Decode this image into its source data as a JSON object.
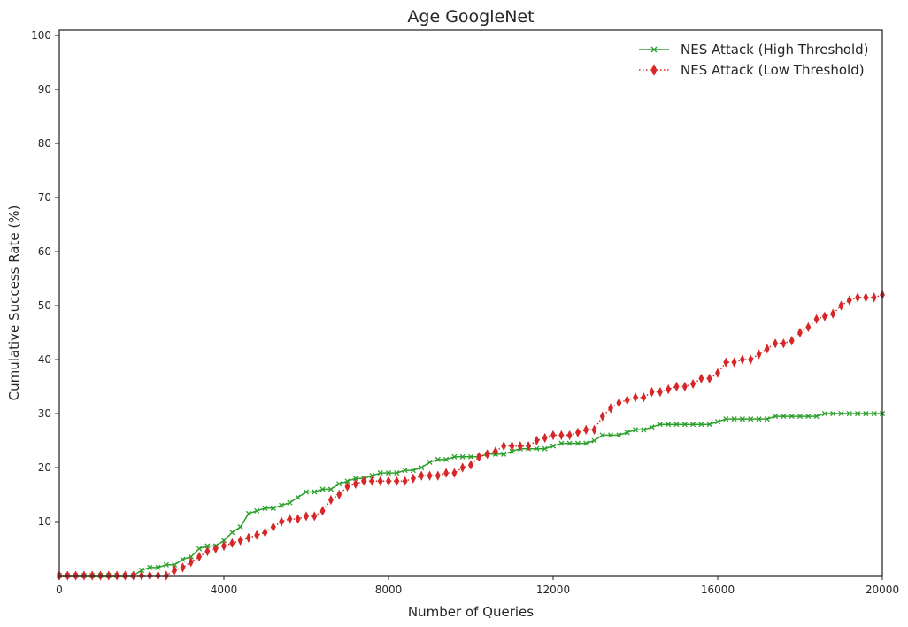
{
  "chart_data": {
    "type": "line",
    "title": "Age GoogleNet",
    "xlabel": "Number of Queries",
    "ylabel": "Cumulative Success Rate (%)",
    "xlim": [
      0,
      20000
    ],
    "ylim": [
      0,
      101
    ],
    "xticks": [
      0,
      4000,
      8000,
      12000,
      16000,
      20000
    ],
    "xtick_labels": [
      "0",
      "4000",
      "8000",
      "12000",
      "16000",
      "20000"
    ],
    "yticks": [
      10,
      20,
      30,
      40,
      50,
      60,
      70,
      80,
      90,
      100
    ],
    "ytick_labels": [
      "10",
      "20",
      "30",
      "40",
      "50",
      "60",
      "70",
      "80",
      "90",
      "100"
    ],
    "grid": false,
    "legend_position": "top-right",
    "series": [
      {
        "name": "NES Attack (High Threshold)",
        "color": "#2ca02c",
        "marker": "x",
        "line_style": "solid",
        "points": [
          [
            0,
            0
          ],
          [
            200,
            0
          ],
          [
            400,
            0
          ],
          [
            600,
            0
          ],
          [
            800,
            0
          ],
          [
            1000,
            0
          ],
          [
            1200,
            0
          ],
          [
            1400,
            0
          ],
          [
            1600,
            0
          ],
          [
            1800,
            0
          ],
          [
            2000,
            1
          ],
          [
            2200,
            1.5
          ],
          [
            2400,
            1.5
          ],
          [
            2600,
            2
          ],
          [
            2800,
            2
          ],
          [
            3000,
            3
          ],
          [
            3200,
            3.5
          ],
          [
            3400,
            5
          ],
          [
            3600,
            5.5
          ],
          [
            3800,
            5.5
          ],
          [
            4000,
            6.5
          ],
          [
            4200,
            8
          ],
          [
            4400,
            9
          ],
          [
            4600,
            11.5
          ],
          [
            4800,
            12
          ],
          [
            5000,
            12.5
          ],
          [
            5200,
            12.5
          ],
          [
            5400,
            13
          ],
          [
            5600,
            13.5
          ],
          [
            5800,
            14.5
          ],
          [
            6000,
            15.5
          ],
          [
            6200,
            15.5
          ],
          [
            6400,
            16
          ],
          [
            6600,
            16
          ],
          [
            6800,
            17
          ],
          [
            7000,
            17.5
          ],
          [
            7200,
            18
          ],
          [
            7400,
            18
          ],
          [
            7600,
            18.5
          ],
          [
            7800,
            19
          ],
          [
            8000,
            19
          ],
          [
            8200,
            19
          ],
          [
            8400,
            19.5
          ],
          [
            8600,
            19.5
          ],
          [
            8800,
            20
          ],
          [
            9000,
            21
          ],
          [
            9200,
            21.5
          ],
          [
            9400,
            21.5
          ],
          [
            9600,
            22
          ],
          [
            9800,
            22
          ],
          [
            10000,
            22
          ],
          [
            10200,
            22
          ],
          [
            10400,
            22.5
          ],
          [
            10600,
            22.5
          ],
          [
            10800,
            22.5
          ],
          [
            11000,
            23
          ],
          [
            11200,
            23.5
          ],
          [
            11400,
            23.5
          ],
          [
            11600,
            23.5
          ],
          [
            11800,
            23.5
          ],
          [
            12000,
            24
          ],
          [
            12200,
            24.5
          ],
          [
            12400,
            24.5
          ],
          [
            12600,
            24.5
          ],
          [
            12800,
            24.5
          ],
          [
            13000,
            25
          ],
          [
            13200,
            26
          ],
          [
            13400,
            26
          ],
          [
            13600,
            26
          ],
          [
            13800,
            26.5
          ],
          [
            14000,
            27
          ],
          [
            14200,
            27
          ],
          [
            14400,
            27.5
          ],
          [
            14600,
            28
          ],
          [
            14800,
            28
          ],
          [
            15000,
            28
          ],
          [
            15200,
            28
          ],
          [
            15400,
            28
          ],
          [
            15600,
            28
          ],
          [
            15800,
            28
          ],
          [
            16000,
            28.5
          ],
          [
            16200,
            29
          ],
          [
            16400,
            29
          ],
          [
            16600,
            29
          ],
          [
            16800,
            29
          ],
          [
            17000,
            29
          ],
          [
            17200,
            29
          ],
          [
            17400,
            29.5
          ],
          [
            17600,
            29.5
          ],
          [
            17800,
            29.5
          ],
          [
            18000,
            29.5
          ],
          [
            18200,
            29.5
          ],
          [
            18400,
            29.5
          ],
          [
            18600,
            30
          ],
          [
            18800,
            30
          ],
          [
            19000,
            30
          ],
          [
            19200,
            30
          ],
          [
            19400,
            30
          ],
          [
            19600,
            30
          ],
          [
            19800,
            30
          ],
          [
            20000,
            30
          ]
        ]
      },
      {
        "name": "NES Attack (Low Threshold)",
        "color": "#d62728",
        "marker": "diamond",
        "line_style": "dotted",
        "points": [
          [
            0,
            0
          ],
          [
            200,
            0
          ],
          [
            400,
            0
          ],
          [
            600,
            0
          ],
          [
            800,
            0
          ],
          [
            1000,
            0
          ],
          [
            1200,
            0
          ],
          [
            1400,
            0
          ],
          [
            1600,
            0
          ],
          [
            1800,
            0
          ],
          [
            2000,
            0
          ],
          [
            2200,
            0
          ],
          [
            2400,
            0
          ],
          [
            2600,
            0
          ],
          [
            2800,
            1
          ],
          [
            3000,
            1.5
          ],
          [
            3200,
            2.5
          ],
          [
            3400,
            3.5
          ],
          [
            3600,
            4.5
          ],
          [
            3800,
            5
          ],
          [
            4000,
            5.5
          ],
          [
            4200,
            6
          ],
          [
            4400,
            6.5
          ],
          [
            4600,
            7
          ],
          [
            4800,
            7.5
          ],
          [
            5000,
            8
          ],
          [
            5200,
            9
          ],
          [
            5400,
            10
          ],
          [
            5600,
            10.5
          ],
          [
            5800,
            10.5
          ],
          [
            6000,
            11
          ],
          [
            6200,
            11
          ],
          [
            6400,
            12
          ],
          [
            6600,
            14
          ],
          [
            6800,
            15
          ],
          [
            7000,
            16.5
          ],
          [
            7200,
            17
          ],
          [
            7400,
            17.5
          ],
          [
            7600,
            17.5
          ],
          [
            7800,
            17.5
          ],
          [
            8000,
            17.5
          ],
          [
            8200,
            17.5
          ],
          [
            8400,
            17.5
          ],
          [
            8600,
            18
          ],
          [
            8800,
            18.5
          ],
          [
            9000,
            18.5
          ],
          [
            9200,
            18.5
          ],
          [
            9400,
            19
          ],
          [
            9600,
            19
          ],
          [
            9800,
            20
          ],
          [
            10000,
            20.5
          ],
          [
            10200,
            22
          ],
          [
            10400,
            22.5
          ],
          [
            10600,
            23
          ],
          [
            10800,
            24
          ],
          [
            11000,
            24
          ],
          [
            11200,
            24
          ],
          [
            11400,
            24
          ],
          [
            11600,
            25
          ],
          [
            11800,
            25.5
          ],
          [
            12000,
            26
          ],
          [
            12200,
            26
          ],
          [
            12400,
            26
          ],
          [
            12600,
            26.5
          ],
          [
            12800,
            27
          ],
          [
            13000,
            27
          ],
          [
            13200,
            29.5
          ],
          [
            13400,
            31
          ],
          [
            13600,
            32
          ],
          [
            13800,
            32.5
          ],
          [
            14000,
            33
          ],
          [
            14200,
            33
          ],
          [
            14400,
            34
          ],
          [
            14600,
            34
          ],
          [
            14800,
            34.5
          ],
          [
            15000,
            35
          ],
          [
            15200,
            35
          ],
          [
            15400,
            35.5
          ],
          [
            15600,
            36.5
          ],
          [
            15800,
            36.5
          ],
          [
            16000,
            37.5
          ],
          [
            16200,
            39.5
          ],
          [
            16400,
            39.5
          ],
          [
            16600,
            40
          ],
          [
            16800,
            40
          ],
          [
            17000,
            41
          ],
          [
            17200,
            42
          ],
          [
            17400,
            43
          ],
          [
            17600,
            43
          ],
          [
            17800,
            43.5
          ],
          [
            18000,
            45
          ],
          [
            18200,
            46
          ],
          [
            18400,
            47.5
          ],
          [
            18600,
            48
          ],
          [
            18800,
            48.5
          ],
          [
            19000,
            50
          ],
          [
            19200,
            51
          ],
          [
            19400,
            51.5
          ],
          [
            19600,
            51.5
          ],
          [
            19800,
            51.5
          ],
          [
            20000,
            52
          ]
        ]
      }
    ]
  }
}
